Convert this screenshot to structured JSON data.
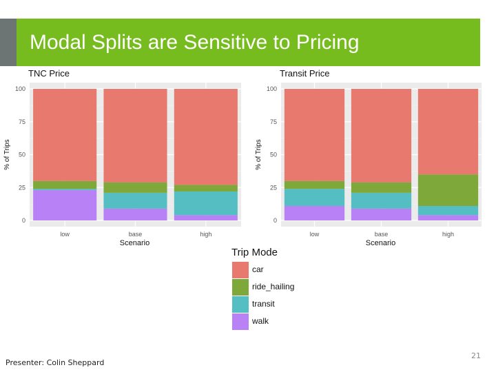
{
  "slide": {
    "title": "Modal Splits are Sensitive to Pricing",
    "presenter": "Presenter: Colin Sheppard",
    "page_number": "21"
  },
  "colors": {
    "title_bar": "#77bc1f",
    "accent": "#6d7474",
    "car": "#e8796f",
    "ride_hailing": "#7ea83a",
    "transit": "#54bec2",
    "walk": "#b881f5",
    "panel_bg": "#ebebeb",
    "grid": "#ffffff"
  },
  "legend": {
    "title": "Trip Mode",
    "items": [
      {
        "key": "car",
        "label": "car"
      },
      {
        "key": "ride_hailing",
        "label": "ride_hailing"
      },
      {
        "key": "transit",
        "label": "transit"
      },
      {
        "key": "walk",
        "label": "walk"
      }
    ]
  },
  "chart_data": [
    {
      "type": "bar",
      "stacked": true,
      "title": "TNC Price",
      "xlabel": "Scenario",
      "ylabel": "% of Trips",
      "ylim": [
        0,
        100
      ],
      "yticks": [
        0,
        25,
        50,
        75,
        100
      ],
      "categories": [
        "low",
        "base",
        "high"
      ],
      "series": [
        {
          "name": "walk",
          "values": [
            23,
            9,
            4
          ]
        },
        {
          "name": "transit",
          "values": [
            1,
            12,
            18
          ]
        },
        {
          "name": "ride_hailing",
          "values": [
            6,
            8,
            5
          ]
        },
        {
          "name": "car",
          "values": [
            70,
            71,
            73
          ]
        }
      ]
    },
    {
      "type": "bar",
      "stacked": true,
      "title": "Transit Price",
      "xlabel": "Scenario",
      "ylabel": "% of Trips",
      "ylim": [
        0,
        100
      ],
      "yticks": [
        0,
        25,
        50,
        75,
        100
      ],
      "categories": [
        "low",
        "base",
        "high"
      ],
      "series": [
        {
          "name": "walk",
          "values": [
            11,
            9,
            4
          ]
        },
        {
          "name": "transit",
          "values": [
            13,
            12,
            7
          ]
        },
        {
          "name": "ride_hailing",
          "values": [
            6,
            8,
            24
          ]
        },
        {
          "name": "car",
          "values": [
            70,
            71,
            65
          ]
        }
      ]
    }
  ]
}
